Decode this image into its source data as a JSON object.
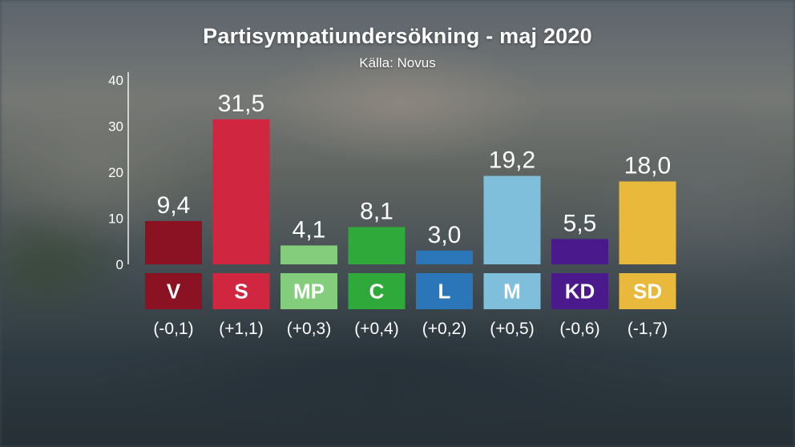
{
  "chart_data": {
    "type": "bar",
    "title": "Partisympatiundersökning - maj 2020",
    "subtitle": "Källa: Novus",
    "categories": [
      "V",
      "S",
      "MP",
      "C",
      "L",
      "M",
      "KD",
      "SD"
    ],
    "values": [
      9.4,
      31.5,
      4.1,
      8.1,
      3.0,
      19.2,
      5.5,
      18.0
    ],
    "value_labels": [
      "9,4",
      "31,5",
      "4,1",
      "8,1",
      "3,0",
      "19,2",
      "5,5",
      "18,0"
    ],
    "changes": [
      "(-0,1)",
      "(+1,1)",
      "(+0,3)",
      "(+0,4)",
      "(+0,2)",
      "(+0,5)",
      "(-0,6)",
      "(-1,7)"
    ],
    "colors": [
      "#8b1222",
      "#d0263f",
      "#84cd7c",
      "#2faa3a",
      "#2a76b8",
      "#7fbfdc",
      "#4a1a8c",
      "#e8b93a"
    ],
    "ylim": [
      0,
      40
    ],
    "yticks": [
      0,
      10,
      20,
      30,
      40
    ],
    "xlabel": "",
    "ylabel": "",
    "grid": false,
    "legend": "none"
  }
}
